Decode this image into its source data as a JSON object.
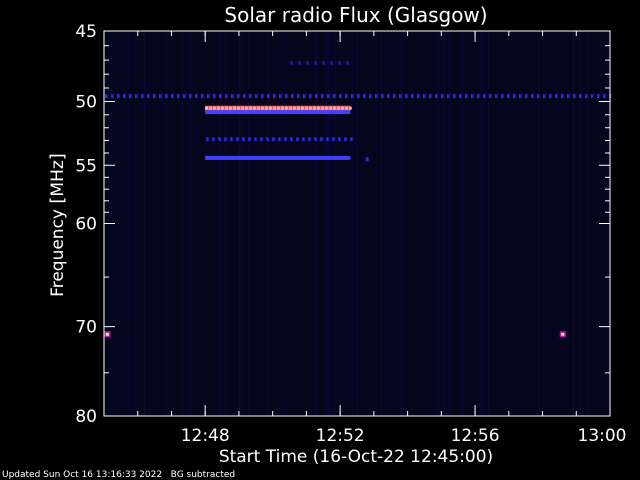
{
  "chart_data": {
    "type": "heatmap",
    "title": "Solar radio Flux (Glasgow)",
    "xlabel": "Start Time (16-Oct-22 12:45:00)",
    "ylabel_text": "Frequency ",
    "ylabel_unit": "MHz",
    "x_range_minutes": [
      0,
      15
    ],
    "y_range_mhz": [
      45,
      80
    ],
    "y_scale": "log",
    "x_ticks": [
      {
        "minute": 3,
        "label": "12:48"
      },
      {
        "minute": 7,
        "label": "12:52"
      },
      {
        "minute": 11,
        "label": "12:56"
      },
      {
        "minute": 15,
        "label": "13:00"
      }
    ],
    "x_minor_every_minutes": 1,
    "y_ticks": [
      {
        "mhz": 45,
        "label": "45"
      },
      {
        "mhz": 50,
        "label": "50"
      },
      {
        "mhz": 55,
        "label": "55"
      },
      {
        "mhz": 60,
        "label": "60"
      },
      {
        "mhz": 70,
        "label": "70"
      },
      {
        "mhz": 80,
        "label": "80"
      }
    ],
    "y_minor_mhz": [
      46,
      47,
      48,
      49,
      51,
      52,
      53,
      54,
      56,
      57,
      58,
      59,
      65,
      75
    ],
    "background_color": "#05051e",
    "emission_bands": [
      {
        "mhz": 49.6,
        "start_min": 0,
        "end_min": 15,
        "intensity": "low",
        "dotted": true
      },
      {
        "mhz": 50.5,
        "start_min": 3.0,
        "end_min": 7.3,
        "intensity": "high",
        "dotted": false
      },
      {
        "mhz": 50.8,
        "start_min": 3.0,
        "end_min": 7.3,
        "intensity": "medium",
        "dotted": false
      },
      {
        "mhz": 52.9,
        "start_min": 3.0,
        "end_min": 7.3,
        "intensity": "low",
        "dotted": true
      },
      {
        "mhz": 54.4,
        "start_min": 3.0,
        "end_min": 7.3,
        "intensity": "medium",
        "dotted": false
      },
      {
        "mhz": 47.2,
        "start_min": 5.5,
        "end_min": 7.2,
        "intensity": "faint",
        "dotted": true
      }
    ],
    "emission_spots": [
      {
        "minute": 0.1,
        "mhz": 70.8,
        "intensity": "high"
      },
      {
        "minute": 13.6,
        "mhz": 70.8,
        "intensity": "high"
      },
      {
        "minute": 7.8,
        "mhz": 54.5,
        "intensity": "low"
      }
    ],
    "colors": {
      "high": "#ffd0b0",
      "high_core": "#ff5060",
      "medium": "#4040ff",
      "low": "#2a2ae0",
      "faint": "#1a1a90",
      "frame": "#ffffff"
    }
  },
  "footer": {
    "updated": "Updated Sun Oct 16 13:16:33 2022",
    "note": "BG subtracted"
  }
}
